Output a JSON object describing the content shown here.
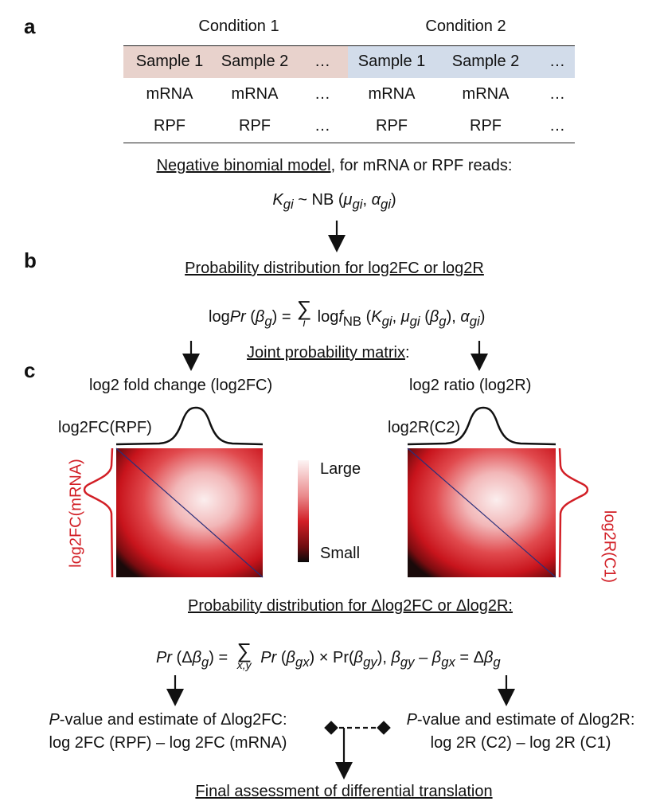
{
  "panels": {
    "a": "a",
    "b": "b",
    "c": "c"
  },
  "table": {
    "conditions": [
      "Condition 1",
      "Condition 2"
    ],
    "header_row": [
      "Sample 1",
      "Sample 2",
      "…",
      "Sample 1",
      "Sample 2",
      "…"
    ],
    "rows": [
      [
        "mRNA",
        "mRNA",
        "…",
        "mRNA",
        "mRNA",
        "…"
      ],
      [
        "RPF",
        "RPF",
        "…",
        "RPF",
        "RPF",
        "…"
      ]
    ],
    "colors": {
      "condition1": "#e8d2cc",
      "condition2": "#d2dcea"
    }
  },
  "nb_model": {
    "title_underlined": "Negative binomial model",
    "title_rest": ", for mRNA or RPF reads:",
    "formula_K": "K",
    "formula_K_sub": "gi",
    "formula_tilde_nb": " ~ NB (",
    "formula_mu": "μ",
    "formula_mu_sub": "gi",
    "formula_comma": ", ",
    "formula_alpha": "α",
    "formula_alpha_sub": "gi",
    "formula_close": ")"
  },
  "panel_b": {
    "title": "Probability distribution for log2FC or log2R",
    "lhs_log": "log",
    "lhs_pr": "Pr",
    "lhs_paren_open": " (",
    "lhs_beta": "β",
    "lhs_beta_sub": "g",
    "lhs_paren_close": ") = ",
    "sum_symbol": "∑",
    "sum_sub": "i",
    "rhs_log": "log",
    "rhs_f": "f",
    "rhs_f_sub": "NB",
    "rhs_open": " (",
    "rhs_K": "K",
    "rhs_K_sub": "gi",
    "rhs_comma1": ", ",
    "rhs_mu": "μ",
    "rhs_mu_sub": "gi",
    "rhs_beta_open": " (",
    "rhs_beta": "β",
    "rhs_beta_sub": "g",
    "rhs_beta_close": "), ",
    "rhs_alpha": "α",
    "rhs_alpha_sub": "gi",
    "rhs_close": ")"
  },
  "joint_label": {
    "underlined": "Joint probability matrix",
    "colon": ":"
  },
  "panel_c": {
    "left_title": "log2 fold change (log2FC)",
    "right_title": "log2 ratio (log2R)",
    "left_top_label": "log2FC(RPF)",
    "left_side_label": "log2FC(mRNA)",
    "right_top_label": "log2R(C2)",
    "right_side_label": "log2R(C1)",
    "scale_large": "Large",
    "scale_small": "Small",
    "colors": {
      "accent_red": "#d21f26",
      "diagonal": "#2b2f7a"
    }
  },
  "delta": {
    "title": "Probability distribution for Δlog2FC or Δlog2R:",
    "lhs_pr": "Pr",
    "lhs_open": " (Δ",
    "lhs_beta": "β",
    "lhs_beta_sub": "g",
    "lhs_close": ") = ",
    "sum_symbol": "∑",
    "sum_sub": "x,y",
    "rhs_pr1": "Pr",
    "rhs_open1": " (",
    "rhs_beta1": "β",
    "rhs_beta1_sub": "gx",
    "rhs_times": ") × Pr(",
    "rhs_beta2": "β",
    "rhs_beta2_sub": "gy",
    "rhs_close": "), ",
    "cond_beta1": "β",
    "cond_beta1_sub": "gy",
    "cond_minus": " – ",
    "cond_beta2": "β",
    "cond_beta2_sub": "gx",
    "cond_eq": " = Δ",
    "cond_beta3": "β",
    "cond_beta3_sub": "g"
  },
  "outputs": {
    "left_line1_italic": "P",
    "left_line1_rest": "-value and estimate of Δlog2FC:",
    "left_line2": "log 2FC (RPF) – log 2FC (mRNA)",
    "right_line1_italic": "P",
    "right_line1_rest": "-value and estimate of Δlog2R:",
    "right_line2": "log 2R (C2) – log 2R (C1)"
  },
  "final": {
    "label": "Final assessment of differential translation"
  }
}
